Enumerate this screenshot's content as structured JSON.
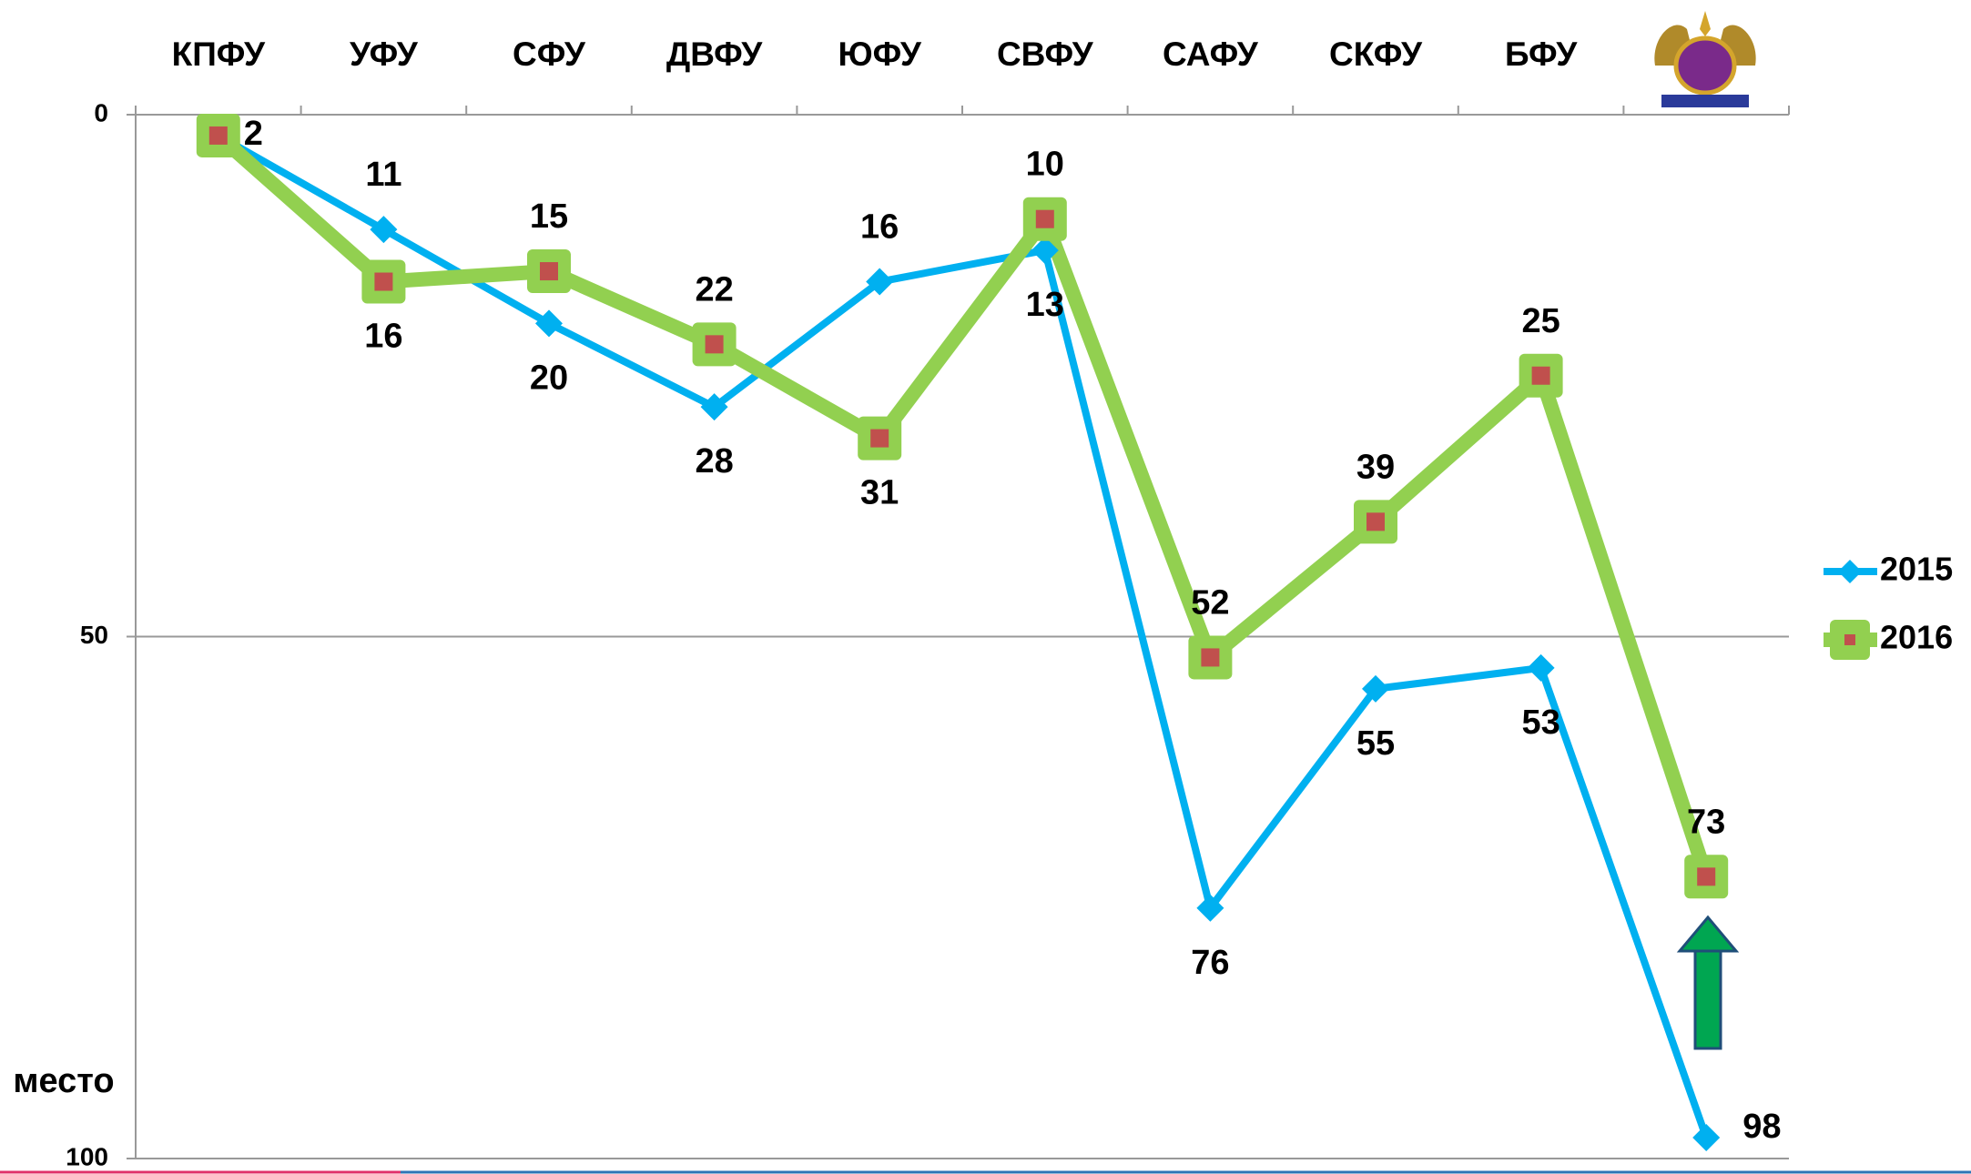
{
  "chart_data": {
    "type": "line",
    "categories": [
      "КПФУ",
      "УФУ",
      "СФУ",
      "ДВФУ",
      "ЮФУ",
      "СВФУ",
      "САФУ",
      "СКФУ",
      "БФУ",
      null
    ],
    "series": [
      {
        "name": "2015",
        "color": "#00b0f0",
        "values": [
          2,
          11,
          20,
          28,
          16,
          13,
          76,
          55,
          53,
          98
        ]
      },
      {
        "name": "2016",
        "color": "#92d050",
        "values": [
          2,
          16,
          15,
          22,
          31,
          10,
          52,
          39,
          25,
          73
        ]
      }
    ],
    "y_label": "место",
    "ylim": [
      0,
      100
    ],
    "yticks": [
      0,
      50,
      100
    ],
    "y_inverted": true,
    "grid": true,
    "legend": "right"
  }
}
